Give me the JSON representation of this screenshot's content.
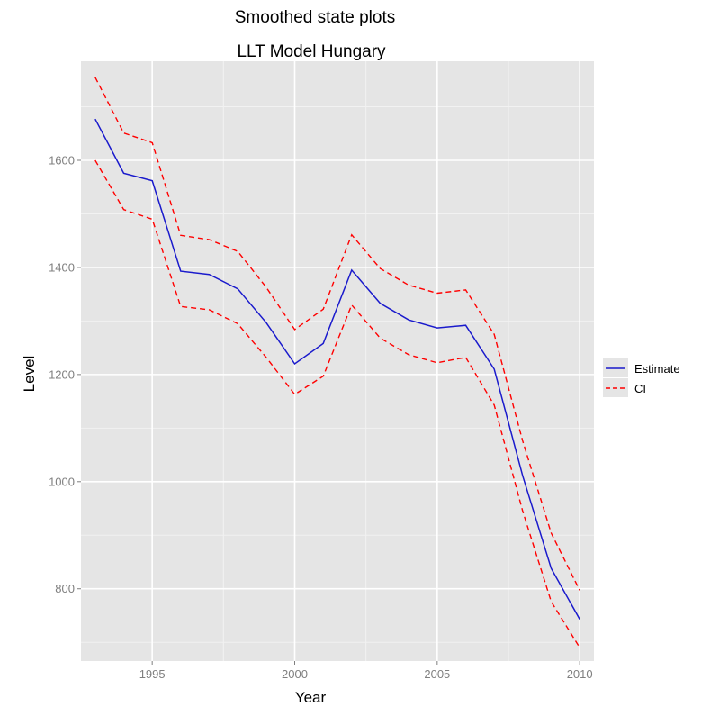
{
  "chart_data": {
    "type": "line",
    "title": "Smoothed state plots",
    "subtitle": "LLT Model Hungary",
    "xlabel": "Year",
    "ylabel": "Level",
    "xlim": [
      1992.5,
      2010.5
    ],
    "ylim": [
      665,
      1785
    ],
    "x_ticks": [
      1995,
      2000,
      2005,
      2010
    ],
    "y_ticks": [
      800,
      1000,
      1200,
      1400,
      1600
    ],
    "grid": true,
    "legend_position": "right",
    "x": [
      1993,
      1994,
      1995,
      1996,
      1997,
      1998,
      1999,
      2000,
      2001,
      2002,
      2003,
      2004,
      2005,
      2006,
      2007,
      2008,
      2009,
      2010
    ],
    "series": [
      {
        "name": "Estimate",
        "color": "#1a1acc",
        "style": "solid",
        "values": [
          1677,
          1576,
          1562,
          1393,
          1387,
          1360,
          1297,
          1220,
          1258,
          1395,
          1333,
          1302,
          1287,
          1292,
          1210,
          1011,
          838,
          743
        ]
      },
      {
        "name": "CI",
        "color": "#ff0000",
        "style": "dashed",
        "values": [
          1755,
          1651,
          1633,
          1460,
          1452,
          1430,
          1363,
          1284,
          1322,
          1461,
          1398,
          1367,
          1352,
          1358,
          1275,
          1076,
          904,
          797
        ]
      },
      {
        "name": "CI",
        "color": "#ff0000",
        "style": "dashed",
        "values": [
          1600,
          1508,
          1490,
          1327,
          1321,
          1295,
          1232,
          1163,
          1197,
          1330,
          1268,
          1237,
          1222,
          1232,
          1143,
          945,
          776,
          690
        ]
      }
    ],
    "legend": [
      {
        "label": "Estimate",
        "color": "#1a1acc",
        "style": "solid"
      },
      {
        "label": "CI",
        "color": "#ff0000",
        "style": "dashed"
      }
    ]
  }
}
